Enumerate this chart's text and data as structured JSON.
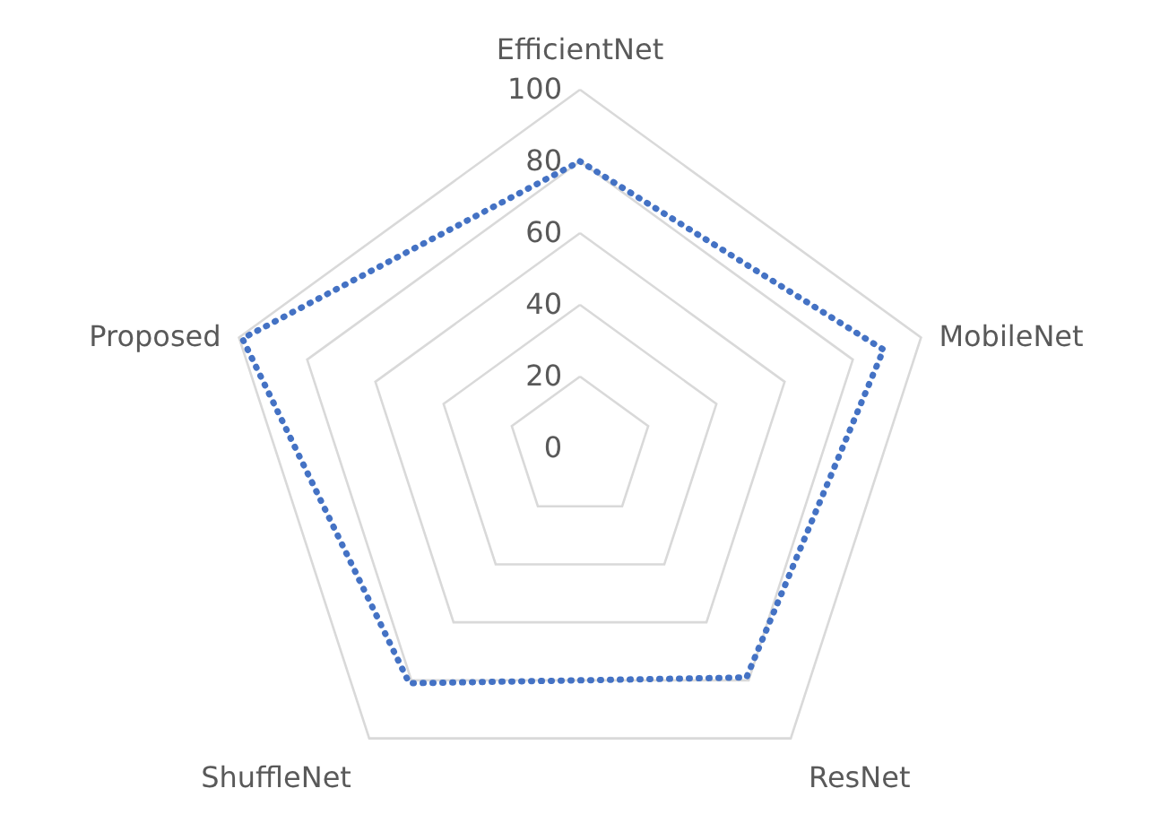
{
  "chart_data": {
    "type": "radar",
    "categories": [
      "EfficientNet",
      "MobileNet",
      "ResNet",
      "ShuffleNet",
      "Proposed"
    ],
    "series": [
      {
        "color": "#4472c4",
        "values": [
          80,
          89,
          79,
          81,
          99
        ]
      }
    ],
    "ylim": [
      0,
      100
    ],
    "yticks": [
      0,
      20,
      40,
      60,
      80,
      100
    ],
    "grid": true,
    "marker": "none",
    "line_style": "dotted"
  }
}
